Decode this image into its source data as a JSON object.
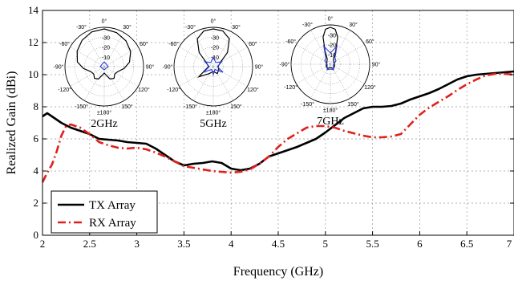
{
  "chart_data": {
    "type": "line",
    "title": "",
    "xlabel": "Frequency (GHz)",
    "ylabel": "Realized Gain (dBi)",
    "xlim": [
      2,
      7
    ],
    "ylim": [
      0,
      14
    ],
    "x_ticks": [
      "2",
      "2.5",
      "3",
      "3.5",
      "4",
      "4.5",
      "5",
      "5.5",
      "6",
      "6.5",
      "7"
    ],
    "y_ticks": [
      "0",
      "2",
      "4",
      "6",
      "8",
      "10",
      "12",
      "14"
    ],
    "grid": true,
    "legend_position": "bottom-left",
    "series": [
      {
        "name": "TX Array",
        "color": "#000000",
        "style": "solid",
        "x": [
          2.0,
          2.05,
          2.1,
          2.2,
          2.3,
          2.4,
          2.5,
          2.6,
          2.7,
          2.8,
          2.9,
          3.0,
          3.1,
          3.2,
          3.3,
          3.4,
          3.5,
          3.6,
          3.7,
          3.8,
          3.9,
          4.0,
          4.1,
          4.2,
          4.3,
          4.4,
          4.5,
          4.6,
          4.7,
          4.8,
          4.9,
          5.0,
          5.1,
          5.2,
          5.3,
          5.4,
          5.5,
          5.6,
          5.7,
          5.8,
          5.9,
          6.0,
          6.1,
          6.2,
          6.3,
          6.4,
          6.5,
          6.6,
          6.7,
          6.8,
          6.9,
          7.0
        ],
        "y": [
          7.4,
          7.6,
          7.4,
          7.0,
          6.7,
          6.5,
          6.3,
          6.0,
          5.95,
          5.9,
          5.8,
          5.75,
          5.7,
          5.4,
          5.0,
          4.6,
          4.35,
          4.45,
          4.5,
          4.6,
          4.5,
          4.15,
          4.05,
          4.15,
          4.45,
          4.9,
          5.1,
          5.3,
          5.5,
          5.75,
          6.0,
          6.4,
          6.85,
          7.3,
          7.6,
          7.9,
          8.0,
          8.0,
          8.05,
          8.2,
          8.45,
          8.65,
          8.85,
          9.1,
          9.4,
          9.7,
          9.9,
          10.0,
          10.05,
          10.1,
          10.15,
          10.2
        ]
      },
      {
        "name": "RX Array",
        "color": "#e0201c",
        "style": "dashdot",
        "x": [
          2.0,
          2.05,
          2.1,
          2.15,
          2.2,
          2.25,
          2.3,
          2.4,
          2.5,
          2.6,
          2.7,
          2.8,
          2.9,
          3.0,
          3.1,
          3.2,
          3.3,
          3.4,
          3.5,
          3.6,
          3.7,
          3.8,
          3.9,
          4.0,
          4.1,
          4.2,
          4.3,
          4.4,
          4.5,
          4.6,
          4.7,
          4.8,
          4.9,
          5.0,
          5.1,
          5.2,
          5.3,
          5.4,
          5.5,
          5.6,
          5.7,
          5.8,
          5.9,
          6.0,
          6.1,
          6.2,
          6.3,
          6.4,
          6.5,
          6.6,
          6.7,
          6.8,
          6.9,
          7.0
        ],
        "y": [
          3.3,
          3.9,
          4.4,
          5.2,
          6.2,
          6.8,
          6.9,
          6.7,
          6.3,
          5.8,
          5.6,
          5.45,
          5.4,
          5.45,
          5.35,
          5.15,
          4.9,
          4.6,
          4.3,
          4.2,
          4.1,
          4.0,
          3.95,
          3.9,
          3.95,
          4.1,
          4.45,
          4.9,
          5.5,
          6.0,
          6.35,
          6.7,
          6.8,
          6.8,
          6.7,
          6.5,
          6.35,
          6.2,
          6.1,
          6.1,
          6.15,
          6.3,
          6.9,
          7.5,
          7.95,
          8.3,
          8.65,
          9.05,
          9.4,
          9.7,
          9.95,
          10.05,
          10.05,
          10.0
        ]
      }
    ],
    "insets": [
      {
        "label": "2GHz",
        "pattern": "2ghz"
      },
      {
        "label": "5GHz",
        "pattern": "5ghz"
      },
      {
        "label": "7GHz",
        "pattern": "7ghz"
      }
    ],
    "polar_labels": {
      "angles": [
        "0°",
        "30°",
        "60°",
        "90°",
        "120°",
        "150°",
        "±180°",
        "-150°",
        "-120°",
        "-90°",
        "-60°",
        "-30°"
      ],
      "rings": [
        "-30",
        "-20",
        "-10"
      ]
    }
  }
}
